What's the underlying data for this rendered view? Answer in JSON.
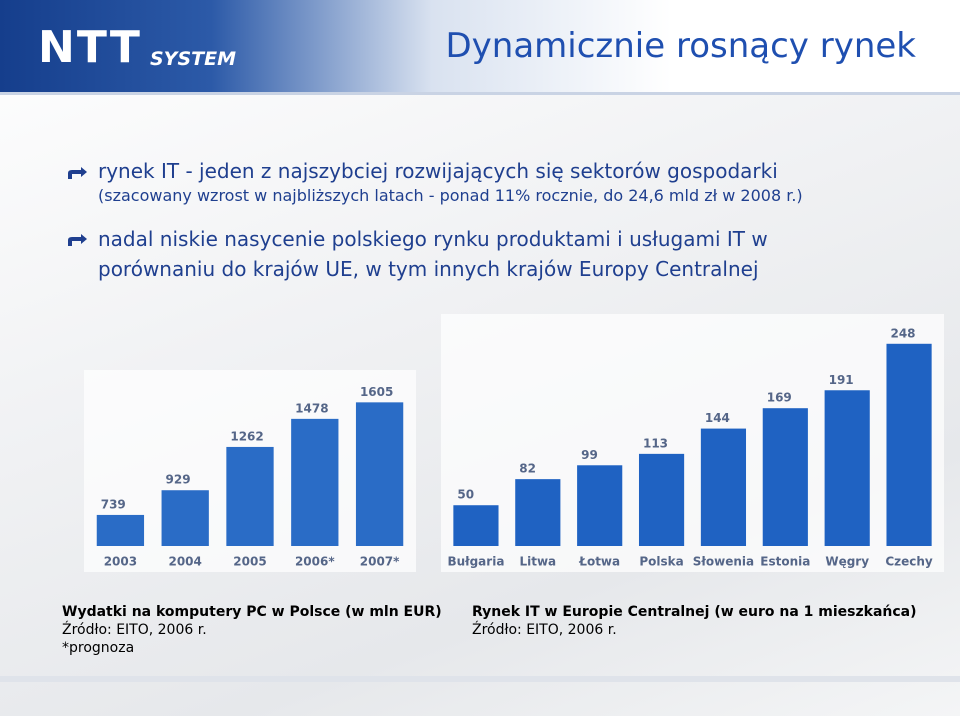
{
  "header": {
    "logo": "NTT",
    "logo_sub": "SYSTEM",
    "title": "Dynamicznie rosnący rynek"
  },
  "bullets": [
    {
      "text": "rynek IT - jeden z najszybciej rozwijających się sektorów gospodarki",
      "sub": "(szacowany wzrost w najbliższych latach - ponad 11% rocznie, do 24,6 mld zł w 2008 r.)"
    },
    {
      "text": "nadal niskie nasycenie polskiego rynku produktami i usługami IT w porównaniu do krajów UE, w tym innych krajów Europy Centralnej"
    }
  ],
  "chart_data": [
    {
      "type": "bar",
      "title": "Wydatki na komputery PC w Polsce (w mln EUR)",
      "source": "Źródło: EITO, 2006 r.",
      "note": "*prognoza",
      "categories": [
        "2003",
        "2004",
        "2005",
        "2006*",
        "2007*"
      ],
      "values": [
        739,
        929,
        1262,
        1478,
        1605
      ],
      "color": "#2a6cc6",
      "ylim": [
        500,
        1700
      ]
    },
    {
      "type": "bar",
      "title": "Rynek IT w Europie Centralnej (w euro na 1 mieszkańca)",
      "source": "Źródło: EITO, 2006 r.",
      "categories": [
        "Bułgaria",
        "Litwa",
        "Łotwa",
        "Polska",
        "Słowenia",
        "Estonia",
        "Węgry",
        "Czechy"
      ],
      "values": [
        50,
        82,
        99,
        113,
        144,
        169,
        191,
        248
      ],
      "color": "#1f62c2",
      "ylim": [
        0,
        260
      ]
    }
  ]
}
